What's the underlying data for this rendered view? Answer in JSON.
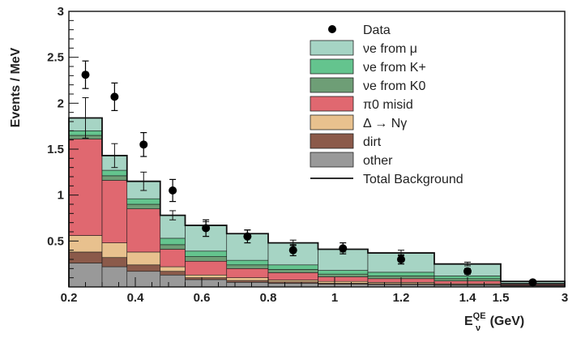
{
  "chart_data": {
    "type": "bar",
    "title": "",
    "xlabel": "E",
    "xlabel_sup": "QE",
    "xlabel_sub": "ν",
    "xlabel_unit": "(GeV)",
    "ylabel": "Events / MeV",
    "ylim": [
      0,
      3
    ],
    "yticks": [
      "0.5",
      "1",
      "1.5",
      "2",
      "2.5",
      "3"
    ],
    "xtick_labels": [
      "0.2",
      "0.4",
      "0.6",
      "0.8",
      "1",
      "1.2",
      "1.4",
      "1.5",
      "3"
    ],
    "bin_edges": [
      "0.2",
      "0.3",
      "0.375",
      "0.475",
      "0.55",
      "0.675",
      "0.8",
      "0.95",
      "1.1",
      "1.3",
      "1.5",
      "3"
    ],
    "legend_position": "top-right",
    "series": [
      {
        "name": "other",
        "key": "other",
        "color": "#999999",
        "values": [
          0.26,
          0.22,
          0.17,
          0.13,
          0.08,
          0.05,
          0.04,
          0.03,
          0.025,
          0.02,
          0.01
        ]
      },
      {
        "name": "dirt",
        "key": "dirt",
        "color": "#8b5a4a",
        "values": [
          0.12,
          0.1,
          0.07,
          0.04,
          0.02,
          0.02,
          0.015,
          0.01,
          0.01,
          0.005,
          0.005
        ]
      },
      {
        "name": "Δ → Nγ",
        "key": "delta",
        "color": "#e8c18e",
        "values": [
          0.18,
          0.16,
          0.14,
          0.05,
          0.03,
          0.03,
          0.02,
          0.02,
          0.015,
          0.01,
          0.005
        ]
      },
      {
        "name": "π0 misid",
        "key": "pi0",
        "color": "#e06870",
        "values": [
          1.05,
          0.68,
          0.47,
          0.19,
          0.15,
          0.1,
          0.08,
          0.05,
          0.04,
          0.03,
          0.01
        ]
      },
      {
        "name": "νe from K0",
        "key": "k0",
        "color": "#6e9e76",
        "values": [
          0.04,
          0.05,
          0.05,
          0.05,
          0.05,
          0.04,
          0.035,
          0.03,
          0.03,
          0.025,
          0.005
        ]
      },
      {
        "name": "νe from K+",
        "key": "kplus",
        "color": "#64c48e",
        "values": [
          0.05,
          0.06,
          0.06,
          0.07,
          0.06,
          0.05,
          0.05,
          0.04,
          0.04,
          0.03,
          0.005
        ]
      },
      {
        "name": "νe from μ",
        "key": "mu",
        "color": "#a6d4c4",
        "values": [
          0.14,
          0.16,
          0.19,
          0.25,
          0.28,
          0.29,
          0.24,
          0.23,
          0.205,
          0.13,
          0.02
        ]
      }
    ],
    "total_background": {
      "name": "Total Background",
      "values": [
        1.84,
        1.43,
        1.15,
        0.78,
        0.67,
        0.58,
        0.48,
        0.41,
        0.37,
        0.25,
        0.06
      ],
      "errors": [
        0.22,
        0.13,
        0.1,
        0.05,
        0.04,
        0.04,
        0.03,
        0.03,
        0.03,
        0.02,
        0.005
      ]
    },
    "data_points": {
      "name": "Data",
      "values": [
        2.31,
        2.07,
        1.55,
        1.05,
        0.64,
        0.55,
        0.4,
        0.42,
        0.3,
        0.17,
        0.05
      ],
      "errors": [
        0.15,
        0.15,
        0.13,
        0.12,
        0.09,
        0.07,
        0.06,
        0.06,
        0.05,
        0.03,
        0.01
      ]
    },
    "legend": [
      {
        "label": "Data",
        "kind": "marker"
      },
      {
        "label": "νe from μ",
        "kind": "box",
        "color": "#a6d4c4"
      },
      {
        "label": "νe from K+",
        "kind": "box",
        "color": "#64c48e"
      },
      {
        "label": "νe from K0",
        "kind": "box",
        "color": "#6e9e76"
      },
      {
        "label": "π0 misid",
        "kind": "box",
        "color": "#e06870"
      },
      {
        "label": "Δ → Nγ",
        "kind": "box",
        "color": "#e8c18e"
      },
      {
        "label": "dirt",
        "kind": "box",
        "color": "#8b5a4a"
      },
      {
        "label": "other",
        "kind": "box",
        "color": "#999999"
      },
      {
        "label": "Total Background",
        "kind": "line"
      }
    ]
  }
}
